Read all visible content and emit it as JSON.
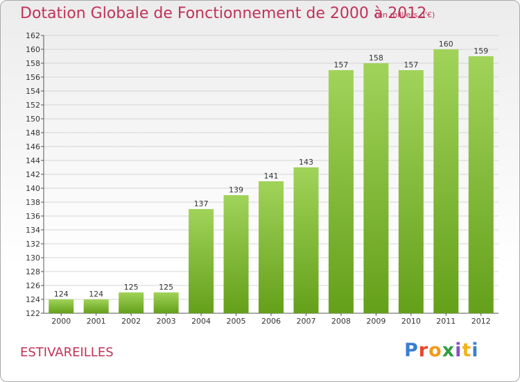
{
  "header": {
    "title": "Dotation Globale de Fonctionnement de 2000 à 2012",
    "unit": "(en milliers d'€)"
  },
  "footer": {
    "commune": "ESTIVAREILLES",
    "logo_text": "Proxiti",
    "logo_colors": [
      "#3a7fd0",
      "#e8462a",
      "#f29a1c",
      "#2f9e44",
      "#8a4fc8",
      "#f0b41c",
      "#3a7fd0"
    ]
  },
  "colors": {
    "title": "#c0325a",
    "bar_light": "#a1d35a",
    "bar_dark": "#64a01a",
    "grid": "#d4d4d4",
    "axis_text": "#333333"
  },
  "chart_data": {
    "type": "bar",
    "categories": [
      "2000",
      "2001",
      "2002",
      "2003",
      "2004",
      "2005",
      "2006",
      "2007",
      "2008",
      "2009",
      "2010",
      "2011",
      "2012"
    ],
    "values": [
      124,
      124,
      125,
      125,
      137,
      139,
      141,
      143,
      157,
      158,
      157,
      160,
      159
    ],
    "ylim": [
      122,
      162
    ],
    "yticks": [
      122,
      124,
      126,
      128,
      130,
      132,
      134,
      136,
      138,
      140,
      142,
      144,
      146,
      148,
      150,
      152,
      154,
      156,
      158,
      160,
      162
    ],
    "grid": true,
    "data_labels": true
  }
}
